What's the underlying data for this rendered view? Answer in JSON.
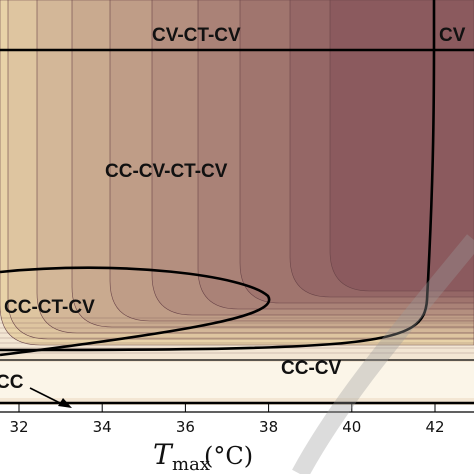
{
  "figure": {
    "regions": [
      {
        "id": "cv-ct-cv",
        "label": "CV-CT-CV"
      },
      {
        "id": "cv",
        "label": "CV"
      },
      {
        "id": "cc-cv-ct-cv",
        "label": "CC-CV-CT-CV"
      },
      {
        "id": "cc-ct-cv",
        "label": "CC-CT-CV"
      },
      {
        "id": "cc-cv",
        "label": "CC-CV"
      },
      {
        "id": "cc",
        "label": "CC"
      }
    ],
    "x_axis": {
      "title_main": "T",
      "title_sub": "max",
      "title_unit": " (°C)",
      "ticks": [
        "32",
        "34",
        "36",
        "38",
        "40",
        "42"
      ]
    },
    "colors": {
      "band_light": "#e8d2a8",
      "band_dark": "#8b5a5e",
      "contour_line": "#6a4448",
      "boundary_line": "#000000",
      "cc_cv_band": "#fbf5e8",
      "watermark": "#9a9a9a"
    }
  }
}
